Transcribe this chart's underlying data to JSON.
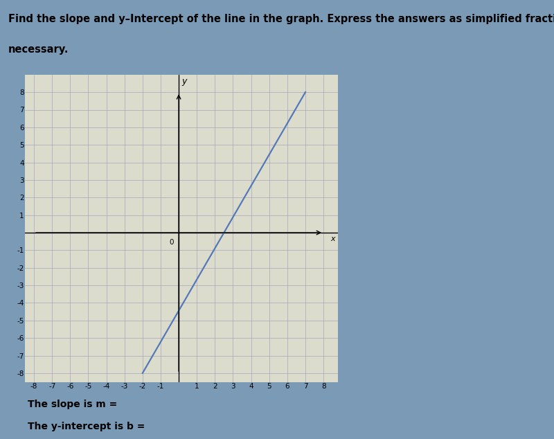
{
  "title_line1": "Find the slope and y–Intercept of the line in the graph. Express the answers as simplified fractions, if",
  "title_line2": "necessary.",
  "slope_label": "The slope is m =",
  "intercept_label": "The y-intercept is b =",
  "xlim": [
    -8,
    8
  ],
  "ylim": [
    -8,
    8
  ],
  "xticks": [
    -8,
    -7,
    -6,
    -5,
    -4,
    -3,
    -2,
    -1,
    0,
    1,
    2,
    3,
    4,
    5,
    6,
    7,
    8
  ],
  "yticks": [
    -8,
    -7,
    -6,
    -5,
    -4,
    -3,
    -2,
    -1,
    0,
    1,
    2,
    3,
    4,
    5,
    6,
    7,
    8
  ],
  "line_x": [
    -2.0,
    7.0
  ],
  "line_y": [
    -8.0,
    8.0
  ],
  "line_color": "#5578b8",
  "line_width": 1.6,
  "grid_color": "#9999bb",
  "grid_linewidth": 0.4,
  "axis_linewidth": 1.0,
  "bg_color": "#dcdccc",
  "outer_bg": "#7a9ab5",
  "panel_bg": "#d0d0c8",
  "title_fontsize": 10.5,
  "label_fontsize": 10,
  "tick_fontsize": 7.5
}
